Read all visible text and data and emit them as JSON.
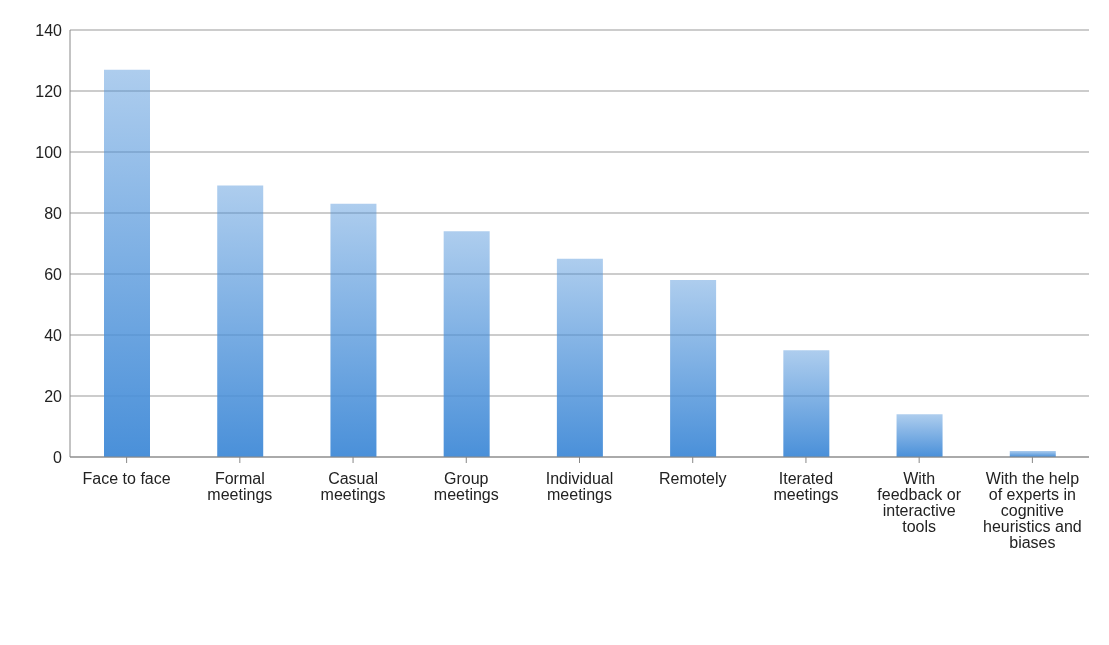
{
  "chart_data": {
    "type": "bar",
    "categories": [
      "Face to face",
      "Formal meetings",
      "Casual meetings",
      "Group meetings",
      "Individual meetings",
      "Remotely",
      "Iterated meetings",
      "With feedback or interactive tools",
      "With the help of experts in cognitive heuristics and biases"
    ],
    "values": [
      127,
      89,
      83,
      74,
      65,
      58,
      35,
      14,
      2
    ],
    "color": "#4a90d9",
    "ylim": [
      0,
      140
    ],
    "yticks": [
      0,
      20,
      40,
      60,
      80,
      100,
      120,
      140
    ],
    "grid": "y"
  }
}
